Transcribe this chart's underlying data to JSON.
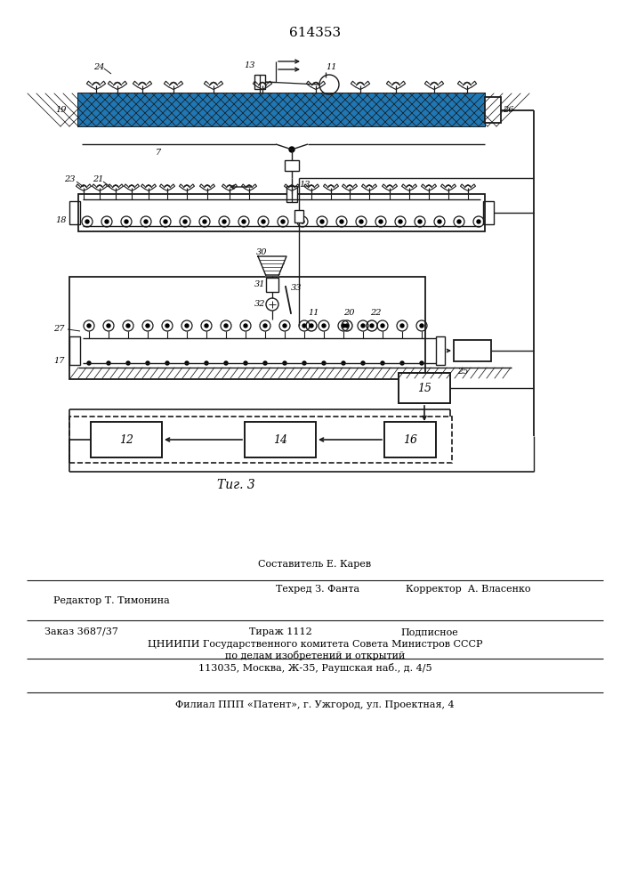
{
  "title": "614353",
  "fig_label": "Τиг. 3",
  "bg_color": "#ffffff",
  "lc": "#1a1a1a",
  "footer_1": "Составитель Е. Карев",
  "footer_2a": "Редактор Т. Тимонина",
  "footer_2b": "Техред З. Фанта",
  "footer_2c": "Корректор  А. Власенко",
  "footer_3a": "Заказ 3687/37",
  "footer_3b": "Тираж 1112",
  "footer_3c": "Подписное",
  "footer_4": "ЦНИИПИ Государственного комитета Совета Министров СССР",
  "footer_5": "по делам изобретений и открытий",
  "footer_6": "113035, Москва, Ж-35, Раушская наб., д. 4/5",
  "footer_7": "Филиал ППП «Патент», г. Ужгород, ул. Проектная, 4"
}
